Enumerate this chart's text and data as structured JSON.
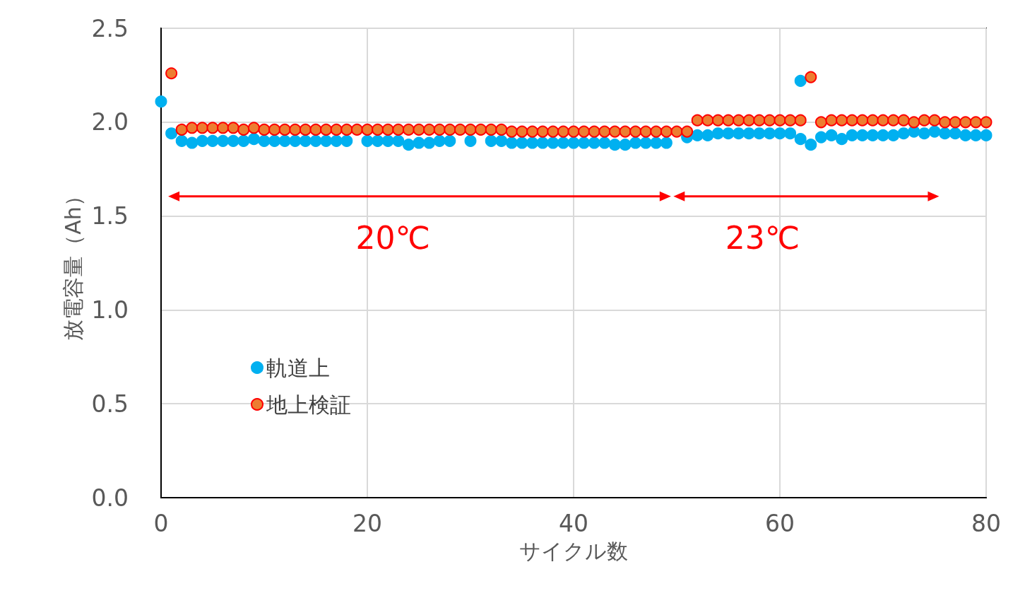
{
  "chart_data": {
    "type": "scatter",
    "xlabel": "サイクル数",
    "ylabel": "放電容量（Ah）",
    "xlim": [
      0,
      80
    ],
    "xticks": [
      0,
      20,
      40,
      60,
      80
    ],
    "ylim": [
      0,
      2.5
    ],
    "yticks": [
      {
        "value": 0,
        "label": "0.0"
      },
      0.5,
      {
        "value": 1,
        "label": "1.0"
      },
      1.5,
      {
        "value": 2,
        "label": "2.0"
      },
      2.5
    ],
    "grid": true,
    "legend": "left",
    "marker": "circle",
    "series": [
      {
        "name": "軌道上",
        "color": "#00b0f0",
        "x": [
          0,
          1,
          2,
          3,
          4,
          5,
          6,
          7,
          8,
          9,
          10,
          11,
          12,
          13,
          14,
          15,
          16,
          17,
          18,
          20,
          21,
          22,
          23,
          24,
          25,
          26,
          27,
          28,
          30,
          32,
          33,
          34,
          35,
          36,
          37,
          38,
          39,
          40,
          41,
          42,
          43,
          44,
          45,
          46,
          47,
          48,
          49,
          51,
          52,
          53,
          54,
          55,
          56,
          57,
          58,
          59,
          60,
          61,
          62,
          62,
          63,
          64,
          65,
          66,
          67,
          68,
          69,
          70,
          71,
          72,
          73,
          74,
          75,
          76,
          77,
          78,
          79,
          80
        ],
        "values": [
          2.11,
          1.94,
          1.9,
          1.89,
          1.9,
          1.9,
          1.9,
          1.9,
          1.9,
          1.91,
          1.9,
          1.9,
          1.9,
          1.9,
          1.9,
          1.9,
          1.9,
          1.9,
          1.9,
          1.9,
          1.9,
          1.9,
          1.9,
          1.88,
          1.89,
          1.89,
          1.9,
          1.9,
          1.9,
          1.9,
          1.9,
          1.89,
          1.89,
          1.89,
          1.89,
          1.89,
          1.89,
          1.89,
          1.89,
          1.89,
          1.89,
          1.88,
          1.88,
          1.89,
          1.89,
          1.89,
          1.89,
          1.92,
          1.93,
          1.93,
          1.94,
          1.94,
          1.94,
          1.94,
          1.94,
          1.94,
          1.94,
          1.94,
          1.91,
          2.22,
          1.88,
          1.92,
          1.93,
          1.91,
          1.93,
          1.93,
          1.93,
          1.93,
          1.93,
          1.94,
          1.95,
          1.94,
          1.95,
          1.94,
          1.94,
          1.93,
          1.93,
          1.93
        ]
      },
      {
        "name": "地上検証",
        "color": "#ed7d31",
        "x": [
          1,
          2,
          3,
          4,
          5,
          6,
          7,
          8,
          9,
          10,
          11,
          12,
          13,
          14,
          15,
          16,
          17,
          18,
          19,
          20,
          21,
          22,
          23,
          24,
          25,
          26,
          27,
          28,
          29,
          30,
          31,
          32,
          33,
          34,
          35,
          36,
          37,
          38,
          39,
          40,
          41,
          42,
          43,
          44,
          45,
          46,
          47,
          48,
          49,
          50,
          51,
          52,
          53,
          54,
          55,
          56,
          57,
          58,
          59,
          60,
          61,
          62,
          63,
          64,
          65,
          66,
          67,
          68,
          69,
          70,
          71,
          72,
          73,
          74,
          75,
          76,
          77,
          78,
          79,
          80
        ],
        "values": [
          2.26,
          1.96,
          1.97,
          1.97,
          1.97,
          1.97,
          1.97,
          1.96,
          1.97,
          1.96,
          1.96,
          1.96,
          1.96,
          1.96,
          1.96,
          1.96,
          1.96,
          1.96,
          1.96,
          1.96,
          1.96,
          1.96,
          1.96,
          1.96,
          1.96,
          1.96,
          1.96,
          1.96,
          1.96,
          1.96,
          1.96,
          1.96,
          1.96,
          1.95,
          1.95,
          1.95,
          1.95,
          1.95,
          1.95,
          1.95,
          1.95,
          1.95,
          1.95,
          1.95,
          1.95,
          1.95,
          1.95,
          1.95,
          1.95,
          1.95,
          1.95,
          2.01,
          2.01,
          2.01,
          2.01,
          2.01,
          2.01,
          2.01,
          2.01,
          2.01,
          2.01,
          2.01,
          2.24,
          2.0,
          2.01,
          2.01,
          2.01,
          2.01,
          2.01,
          2.01,
          2.01,
          2.01,
          2.0,
          2.01,
          2.01,
          2.0,
          2.0,
          2.0,
          2.0,
          2.0
        ]
      }
    ],
    "annotations": [
      "20℃",
      "23℃"
    ]
  }
}
